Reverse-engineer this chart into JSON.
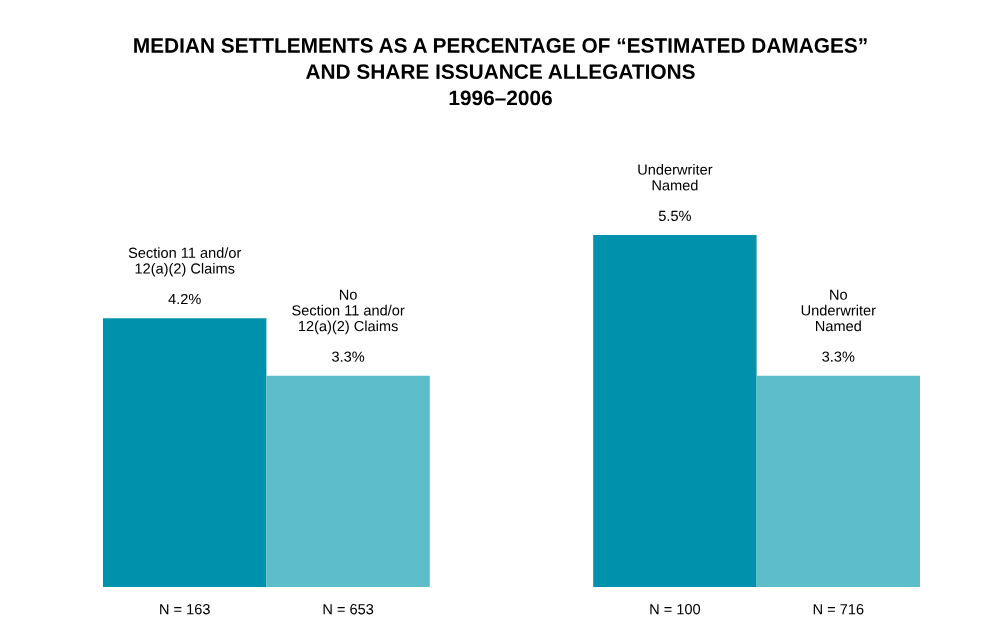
{
  "chart_data": {
    "type": "bar",
    "title": "MEDIAN SETTLEMENTS AS A PERCENTAGE OF “ESTIMATED DAMAGES”\nAND SHARE ISSUANCE ALLEGATIONS\n1996–2006",
    "categories": [
      "N = 163",
      "N = 653",
      null,
      "N = 100",
      "N = 716"
    ],
    "values": [
      4.2,
      3.3,
      null,
      5.5,
      3.3
    ],
    "colors": [
      "#0092ac",
      "#5bbec8",
      "#ffffff",
      "#0092ac",
      "#5bbec8"
    ],
    "value_labels": [
      "4.2%",
      "3.3%",
      null,
      "5.5%",
      "3.3%"
    ],
    "annotations": [
      "Section 11 and/or\n12(a)(2) Claims",
      "No\nSection 11 and/or\n12(a)(2) Claims",
      "Underwriter\nNamed",
      "No\nUnderwriter\nNamed"
    ]
  }
}
